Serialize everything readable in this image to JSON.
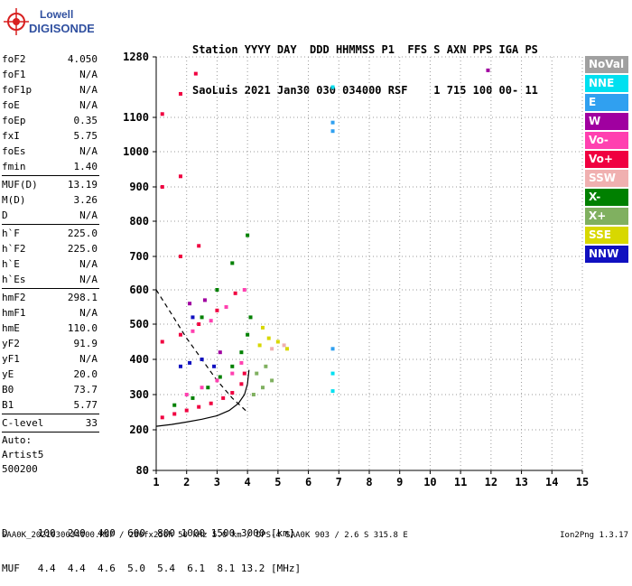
{
  "logo": {
    "line1": "Lowell",
    "line2": "DIGISONDE"
  },
  "header": {
    "labels_line": "Station YYYY DAY  DDD HHMMSS P1  FFS S AXN PPS IGA PS",
    "values_line": "SaoLuis 2021 Jan30 030 034000 RSF    1 715 100 00- 11"
  },
  "params": [
    {
      "k": "foF2",
      "v": "4.050"
    },
    {
      "k": "foF1",
      "v": "N/A"
    },
    {
      "k": "foF1p",
      "v": "N/A"
    },
    {
      "k": "foE",
      "v": "N/A"
    },
    {
      "k": "foEp",
      "v": "0.35"
    },
    {
      "k": "fxI",
      "v": "5.75"
    },
    {
      "k": "foEs",
      "v": "N/A"
    },
    {
      "k": "fmin",
      "v": "1.40"
    },
    {
      "k": "MUF(D)",
      "v": "13.19"
    },
    {
      "k": "M(D)",
      "v": "3.26"
    },
    {
      "k": "D",
      "v": "N/A"
    },
    {
      "k": "h`F",
      "v": "225.0"
    },
    {
      "k": "h`F2",
      "v": "225.0"
    },
    {
      "k": "h`E",
      "v": "N/A"
    },
    {
      "k": "h`Es",
      "v": "N/A"
    },
    {
      "k": "hmF2",
      "v": "298.1"
    },
    {
      "k": "hmF1",
      "v": "N/A"
    },
    {
      "k": "hmE",
      "v": "110.0"
    },
    {
      "k": "yF2",
      "v": "91.9"
    },
    {
      "k": "yF1",
      "v": "N/A"
    },
    {
      "k": "yE",
      "v": "20.0"
    },
    {
      "k": "B0",
      "v": "73.7"
    },
    {
      "k": "B1",
      "v": "5.77"
    },
    {
      "k": "C-level",
      "v": "33"
    }
  ],
  "auto": {
    "line1": "Auto:",
    "line2": "Artist5",
    "line3": "500200"
  },
  "legend": [
    {
      "label": "NoVal",
      "color": "#a0a0a0"
    },
    {
      "label": "NNE",
      "color": "#00e0f0"
    },
    {
      "label": "E",
      "color": "#30a0f0"
    },
    {
      "label": "W",
      "color": "#a000a0"
    },
    {
      "label": "Vo-",
      "color": "#ff40b0"
    },
    {
      "label": "Vo+",
      "color": "#f00040"
    },
    {
      "label": "SSW",
      "color": "#f0b0b0"
    },
    {
      "label": "X-",
      "color": "#008000"
    },
    {
      "label": "X+",
      "color": "#80b060"
    },
    {
      "label": "SSE",
      "color": "#d8d800"
    },
    {
      "label": "NNW",
      "color": "#1010c0"
    }
  ],
  "bottom": {
    "d_line": "D     100  200  400  600  800 1000 1500 3000 [km]",
    "muf_line": "MUF   4.4  4.4  4.6  5.0  5.4  6.1  8.1 13.2 [MHz]"
  },
  "footer": "SAA0K_2021030034000.RSF / 280fx256h 50 kHz 5.0 km / DPS-4 SAA0K 903 / 2.6 S 315.8 E",
  "version": "Ion2Png 1.3.17",
  "chart_data": {
    "type": "scatter",
    "x_ticks": [
      "1",
      "2",
      "3",
      "4",
      "5",
      "6",
      "7",
      "8",
      "9",
      "10",
      "11",
      "12",
      "13",
      "14",
      "15"
    ],
    "y_ticks": [
      "80",
      "200",
      "300",
      "400",
      "500",
      "600",
      "700",
      "800",
      "900",
      "1000",
      "1100",
      "1280"
    ],
    "xlim": [
      1,
      15
    ],
    "ylim": [
      80,
      1280
    ],
    "y_scale": "nonlinear (ionogram height axis)",
    "grid": true,
    "legend_position": "right",
    "series": [
      {
        "name": "Vo+",
        "color": "#f00040",
        "points": [
          [
            1.2,
            235
          ],
          [
            1.6,
            245
          ],
          [
            2.0,
            255
          ],
          [
            2.4,
            265
          ],
          [
            2.8,
            275
          ],
          [
            3.2,
            290
          ],
          [
            3.5,
            305
          ],
          [
            3.8,
            330
          ],
          [
            3.9,
            360
          ],
          [
            1.2,
            450
          ],
          [
            1.8,
            470
          ],
          [
            2.4,
            500
          ],
          [
            3.0,
            540
          ],
          [
            3.6,
            590
          ],
          [
            1.8,
            700
          ],
          [
            2.4,
            730
          ],
          [
            1.2,
            900
          ],
          [
            1.8,
            930
          ],
          [
            1.2,
            1110
          ],
          [
            1.8,
            1170
          ],
          [
            2.3,
            1230
          ]
        ]
      },
      {
        "name": "Vo-",
        "color": "#ff40b0",
        "points": [
          [
            2.0,
            300
          ],
          [
            2.5,
            320
          ],
          [
            3.0,
            340
          ],
          [
            3.5,
            360
          ],
          [
            3.8,
            390
          ],
          [
            2.2,
            480
          ],
          [
            2.8,
            510
          ],
          [
            3.3,
            550
          ],
          [
            3.9,
            600
          ]
        ]
      },
      {
        "name": "X-",
        "color": "#008000",
        "points": [
          [
            1.6,
            270
          ],
          [
            2.2,
            290
          ],
          [
            2.7,
            320
          ],
          [
            3.1,
            350
          ],
          [
            3.5,
            380
          ],
          [
            3.8,
            420
          ],
          [
            4.0,
            470
          ],
          [
            4.1,
            520
          ],
          [
            2.5,
            520
          ],
          [
            3.0,
            600
          ],
          [
            3.5,
            680
          ],
          [
            4.0,
            760
          ]
        ]
      },
      {
        "name": "X+",
        "color": "#80b060",
        "points": [
          [
            4.2,
            300
          ],
          [
            4.5,
            320
          ],
          [
            4.8,
            340
          ],
          [
            4.3,
            360
          ],
          [
            4.6,
            380
          ]
        ]
      },
      {
        "name": "SSE",
        "color": "#d8d800",
        "points": [
          [
            4.4,
            440
          ],
          [
            4.7,
            460
          ],
          [
            5.0,
            450
          ],
          [
            5.3,
            430
          ],
          [
            4.5,
            490
          ]
        ]
      },
      {
        "name": "NNW",
        "color": "#1010c0",
        "points": [
          [
            1.8,
            380
          ],
          [
            2.1,
            390
          ],
          [
            2.5,
            400
          ],
          [
            2.9,
            380
          ],
          [
            2.2,
            520
          ]
        ]
      },
      {
        "name": "W",
        "color": "#a000a0",
        "points": [
          [
            2.1,
            560
          ],
          [
            2.6,
            570
          ],
          [
            3.1,
            420
          ],
          [
            11.9,
            1240
          ]
        ]
      },
      {
        "name": "NNE",
        "color": "#00e0f0",
        "points": [
          [
            6.8,
            310
          ],
          [
            6.8,
            360
          ],
          [
            6.8,
            1190
          ]
        ]
      },
      {
        "name": "E",
        "color": "#30a0f0",
        "points": [
          [
            6.8,
            1085
          ],
          [
            6.8,
            1060
          ],
          [
            6.8,
            430
          ]
        ]
      },
      {
        "name": "SSW",
        "color": "#f0b0b0",
        "points": [
          [
            4.8,
            430
          ],
          [
            5.2,
            440
          ]
        ]
      }
    ],
    "lines": [
      {
        "name": "profile",
        "style": "solid",
        "points": [
          [
            1.0,
            210
          ],
          [
            1.5,
            215
          ],
          [
            2.0,
            222
          ],
          [
            2.5,
            230
          ],
          [
            3.0,
            240
          ],
          [
            3.4,
            255
          ],
          [
            3.7,
            275
          ],
          [
            3.9,
            300
          ],
          [
            4.0,
            330
          ],
          [
            4.05,
            370
          ]
        ]
      },
      {
        "name": "profile-dashed",
        "style": "dashed",
        "points": [
          [
            1.0,
            600
          ],
          [
            1.5,
            530
          ],
          [
            2.0,
            460
          ],
          [
            2.5,
            400
          ],
          [
            3.0,
            340
          ],
          [
            3.5,
            290
          ],
          [
            4.0,
            250
          ]
        ]
      }
    ]
  }
}
